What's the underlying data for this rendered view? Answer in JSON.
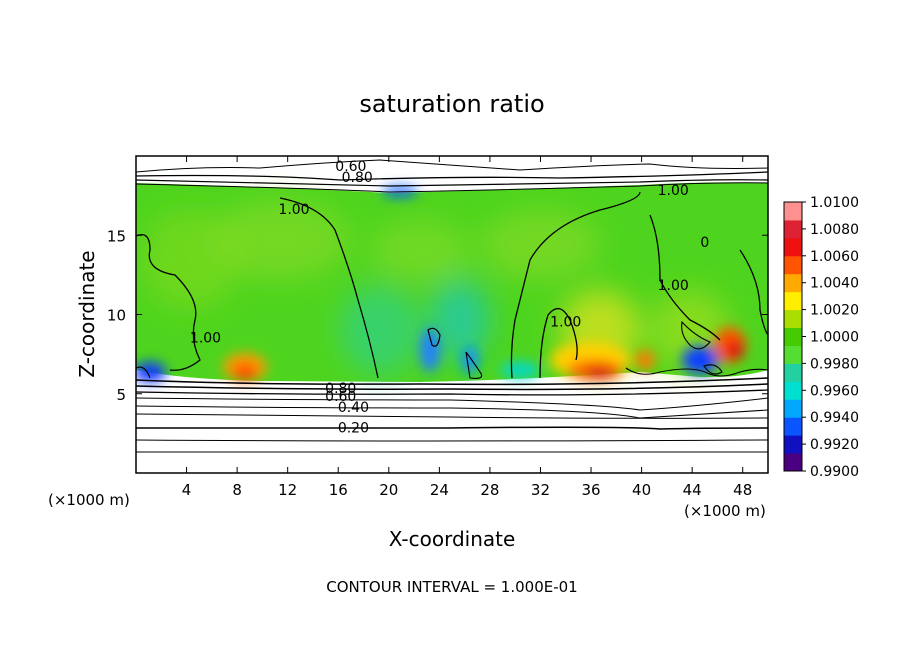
{
  "chart_data": {
    "type": "heatmap",
    "title": "saturation ratio",
    "xlabel": "X-coordinate",
    "ylabel": "Z-coordinate",
    "x_unit": "(×1000 m)",
    "z_unit": "(×1000 m)",
    "xlim": [
      0,
      50
    ],
    "ylim": [
      0,
      20
    ],
    "x_ticks": [
      4,
      8,
      12,
      16,
      20,
      24,
      28,
      32,
      36,
      40,
      44,
      48
    ],
    "y_ticks": [
      5,
      10,
      15
    ],
    "colorbar": {
      "min": 0.99,
      "max": 1.01,
      "ticks": [
        "1.0100",
        "1.0080",
        "1.0060",
        "1.0040",
        "1.0020",
        "1.0000",
        "0.9980",
        "0.9960",
        "0.9940",
        "0.9920",
        "0.9900"
      ],
      "colors": [
        "#4b0082",
        "#1010c0",
        "#0a55ff",
        "#00a8ff",
        "#00e0d0",
        "#22d0a0",
        "#55dd33",
        "#44cc00",
        "#aadd00",
        "#ffee00",
        "#ffaa00",
        "#ff5500",
        "#ee1111",
        "#dd2233",
        "#ff9090"
      ]
    },
    "contour_interval_text": "CONTOUR INTERVAL = 1.000E-01",
    "contour_labels": [
      {
        "text": "0.60",
        "x": 17.0,
        "z": 19.3
      },
      {
        "text": "0.80",
        "x": 17.5,
        "z": 18.6
      },
      {
        "text": "1.00",
        "x": 12.5,
        "z": 16.6
      },
      {
        "text": "1.00",
        "x": 42.5,
        "z": 17.8
      },
      {
        "text": "0",
        "x": 45.0,
        "z": 14.5
      },
      {
        "text": "1.00",
        "x": 42.5,
        "z": 11.8
      },
      {
        "text": "1.00",
        "x": 34.0,
        "z": 9.5
      },
      {
        "text": "1.00",
        "x": 5.5,
        "z": 8.5
      },
      {
        "text": "0.80",
        "x": 16.2,
        "z": 5.3
      },
      {
        "text": "0.60",
        "x": 16.2,
        "z": 4.8
      },
      {
        "text": "0.40",
        "x": 17.2,
        "z": 4.1
      },
      {
        "text": "0.20",
        "x": 17.2,
        "z": 2.8
      }
    ]
  }
}
